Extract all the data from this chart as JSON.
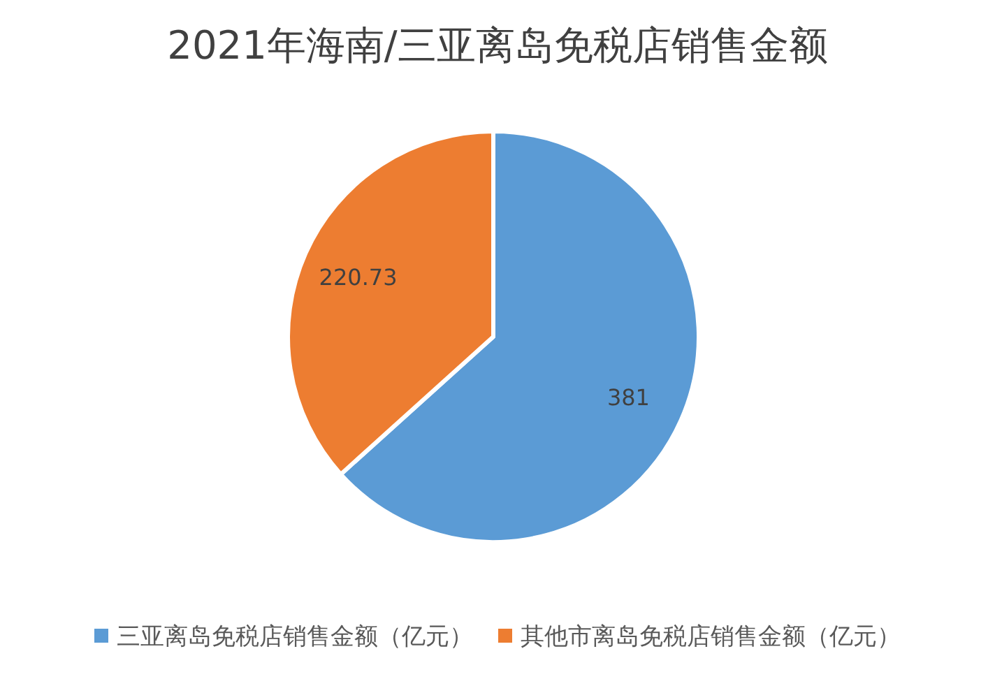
{
  "chart_data": {
    "type": "pie",
    "title": "2021年海南/三亚离岛免税店销售金额",
    "categories": [
      "三亚离岛免税店销售金额（亿元）",
      "其他市离岛免税店销售金额（亿元）"
    ],
    "values": [
      381,
      220.73
    ],
    "colors": [
      "#5b9bd5",
      "#ed7d31"
    ],
    "data_labels": true,
    "legend": "bottom"
  }
}
